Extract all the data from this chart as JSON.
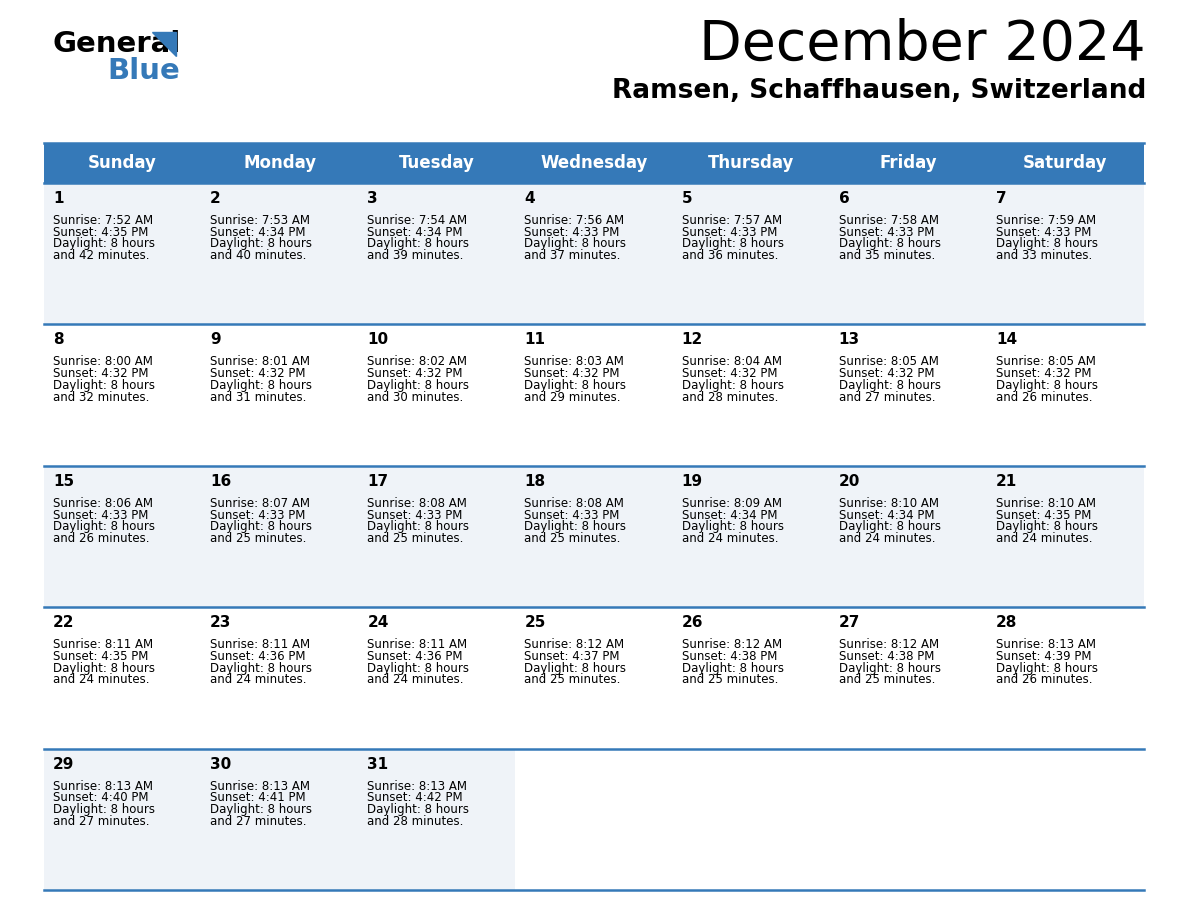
{
  "title": "December 2024",
  "subtitle": "Ramsen, Schaffhausen, Switzerland",
  "header_color": "#3579b8",
  "header_text_color": "#ffffff",
  "row_bg_colors": [
    "#eff3f8",
    "#ffffff"
  ],
  "divider_color": "#3579b8",
  "text_color": "#000000",
  "day_headers": [
    "Sunday",
    "Monday",
    "Tuesday",
    "Wednesday",
    "Thursday",
    "Friday",
    "Saturday"
  ],
  "days": [
    {
      "day": 1,
      "col": 0,
      "row": 0,
      "sunrise": "7:52 AM",
      "sunset": "4:35 PM",
      "daylight_h": "8 hours",
      "daylight_m": "and 42 minutes."
    },
    {
      "day": 2,
      "col": 1,
      "row": 0,
      "sunrise": "7:53 AM",
      "sunset": "4:34 PM",
      "daylight_h": "8 hours",
      "daylight_m": "and 40 minutes."
    },
    {
      "day": 3,
      "col": 2,
      "row": 0,
      "sunrise": "7:54 AM",
      "sunset": "4:34 PM",
      "daylight_h": "8 hours",
      "daylight_m": "and 39 minutes."
    },
    {
      "day": 4,
      "col": 3,
      "row": 0,
      "sunrise": "7:56 AM",
      "sunset": "4:33 PM",
      "daylight_h": "8 hours",
      "daylight_m": "and 37 minutes."
    },
    {
      "day": 5,
      "col": 4,
      "row": 0,
      "sunrise": "7:57 AM",
      "sunset": "4:33 PM",
      "daylight_h": "8 hours",
      "daylight_m": "and 36 minutes."
    },
    {
      "day": 6,
      "col": 5,
      "row": 0,
      "sunrise": "7:58 AM",
      "sunset": "4:33 PM",
      "daylight_h": "8 hours",
      "daylight_m": "and 35 minutes."
    },
    {
      "day": 7,
      "col": 6,
      "row": 0,
      "sunrise": "7:59 AM",
      "sunset": "4:33 PM",
      "daylight_h": "8 hours",
      "daylight_m": "and 33 minutes."
    },
    {
      "day": 8,
      "col": 0,
      "row": 1,
      "sunrise": "8:00 AM",
      "sunset": "4:32 PM",
      "daylight_h": "8 hours",
      "daylight_m": "and 32 minutes."
    },
    {
      "day": 9,
      "col": 1,
      "row": 1,
      "sunrise": "8:01 AM",
      "sunset": "4:32 PM",
      "daylight_h": "8 hours",
      "daylight_m": "and 31 minutes."
    },
    {
      "day": 10,
      "col": 2,
      "row": 1,
      "sunrise": "8:02 AM",
      "sunset": "4:32 PM",
      "daylight_h": "8 hours",
      "daylight_m": "and 30 minutes."
    },
    {
      "day": 11,
      "col": 3,
      "row": 1,
      "sunrise": "8:03 AM",
      "sunset": "4:32 PM",
      "daylight_h": "8 hours",
      "daylight_m": "and 29 minutes."
    },
    {
      "day": 12,
      "col": 4,
      "row": 1,
      "sunrise": "8:04 AM",
      "sunset": "4:32 PM",
      "daylight_h": "8 hours",
      "daylight_m": "and 28 minutes."
    },
    {
      "day": 13,
      "col": 5,
      "row": 1,
      "sunrise": "8:05 AM",
      "sunset": "4:32 PM",
      "daylight_h": "8 hours",
      "daylight_m": "and 27 minutes."
    },
    {
      "day": 14,
      "col": 6,
      "row": 1,
      "sunrise": "8:05 AM",
      "sunset": "4:32 PM",
      "daylight_h": "8 hours",
      "daylight_m": "and 26 minutes."
    },
    {
      "day": 15,
      "col": 0,
      "row": 2,
      "sunrise": "8:06 AM",
      "sunset": "4:33 PM",
      "daylight_h": "8 hours",
      "daylight_m": "and 26 minutes."
    },
    {
      "day": 16,
      "col": 1,
      "row": 2,
      "sunrise": "8:07 AM",
      "sunset": "4:33 PM",
      "daylight_h": "8 hours",
      "daylight_m": "and 25 minutes."
    },
    {
      "day": 17,
      "col": 2,
      "row": 2,
      "sunrise": "8:08 AM",
      "sunset": "4:33 PM",
      "daylight_h": "8 hours",
      "daylight_m": "and 25 minutes."
    },
    {
      "day": 18,
      "col": 3,
      "row": 2,
      "sunrise": "8:08 AM",
      "sunset": "4:33 PM",
      "daylight_h": "8 hours",
      "daylight_m": "and 25 minutes."
    },
    {
      "day": 19,
      "col": 4,
      "row": 2,
      "sunrise": "8:09 AM",
      "sunset": "4:34 PM",
      "daylight_h": "8 hours",
      "daylight_m": "and 24 minutes."
    },
    {
      "day": 20,
      "col": 5,
      "row": 2,
      "sunrise": "8:10 AM",
      "sunset": "4:34 PM",
      "daylight_h": "8 hours",
      "daylight_m": "and 24 minutes."
    },
    {
      "day": 21,
      "col": 6,
      "row": 2,
      "sunrise": "8:10 AM",
      "sunset": "4:35 PM",
      "daylight_h": "8 hours",
      "daylight_m": "and 24 minutes."
    },
    {
      "day": 22,
      "col": 0,
      "row": 3,
      "sunrise": "8:11 AM",
      "sunset": "4:35 PM",
      "daylight_h": "8 hours",
      "daylight_m": "and 24 minutes."
    },
    {
      "day": 23,
      "col": 1,
      "row": 3,
      "sunrise": "8:11 AM",
      "sunset": "4:36 PM",
      "daylight_h": "8 hours",
      "daylight_m": "and 24 minutes."
    },
    {
      "day": 24,
      "col": 2,
      "row": 3,
      "sunrise": "8:11 AM",
      "sunset": "4:36 PM",
      "daylight_h": "8 hours",
      "daylight_m": "and 24 minutes."
    },
    {
      "day": 25,
      "col": 3,
      "row": 3,
      "sunrise": "8:12 AM",
      "sunset": "4:37 PM",
      "daylight_h": "8 hours",
      "daylight_m": "and 25 minutes."
    },
    {
      "day": 26,
      "col": 4,
      "row": 3,
      "sunrise": "8:12 AM",
      "sunset": "4:38 PM",
      "daylight_h": "8 hours",
      "daylight_m": "and 25 minutes."
    },
    {
      "day": 27,
      "col": 5,
      "row": 3,
      "sunrise": "8:12 AM",
      "sunset": "4:38 PM",
      "daylight_h": "8 hours",
      "daylight_m": "and 25 minutes."
    },
    {
      "day": 28,
      "col": 6,
      "row": 3,
      "sunrise": "8:13 AM",
      "sunset": "4:39 PM",
      "daylight_h": "8 hours",
      "daylight_m": "and 26 minutes."
    },
    {
      "day": 29,
      "col": 0,
      "row": 4,
      "sunrise": "8:13 AM",
      "sunset": "4:40 PM",
      "daylight_h": "8 hours",
      "daylight_m": "and 27 minutes."
    },
    {
      "day": 30,
      "col": 1,
      "row": 4,
      "sunrise": "8:13 AM",
      "sunset": "4:41 PM",
      "daylight_h": "8 hours",
      "daylight_m": "and 27 minutes."
    },
    {
      "day": 31,
      "col": 2,
      "row": 4,
      "sunrise": "8:13 AM",
      "sunset": "4:42 PM",
      "daylight_h": "8 hours",
      "daylight_m": "and 28 minutes."
    }
  ],
  "logo_text1": "General",
  "logo_text2": "Blue",
  "logo_color1": "#000000",
  "logo_color2": "#3579b8",
  "logo_triangle_color": "#3579b8",
  "title_fontsize": 40,
  "subtitle_fontsize": 19,
  "header_fontsize": 12,
  "day_num_fontsize": 11,
  "cell_text_fontsize": 8.5
}
